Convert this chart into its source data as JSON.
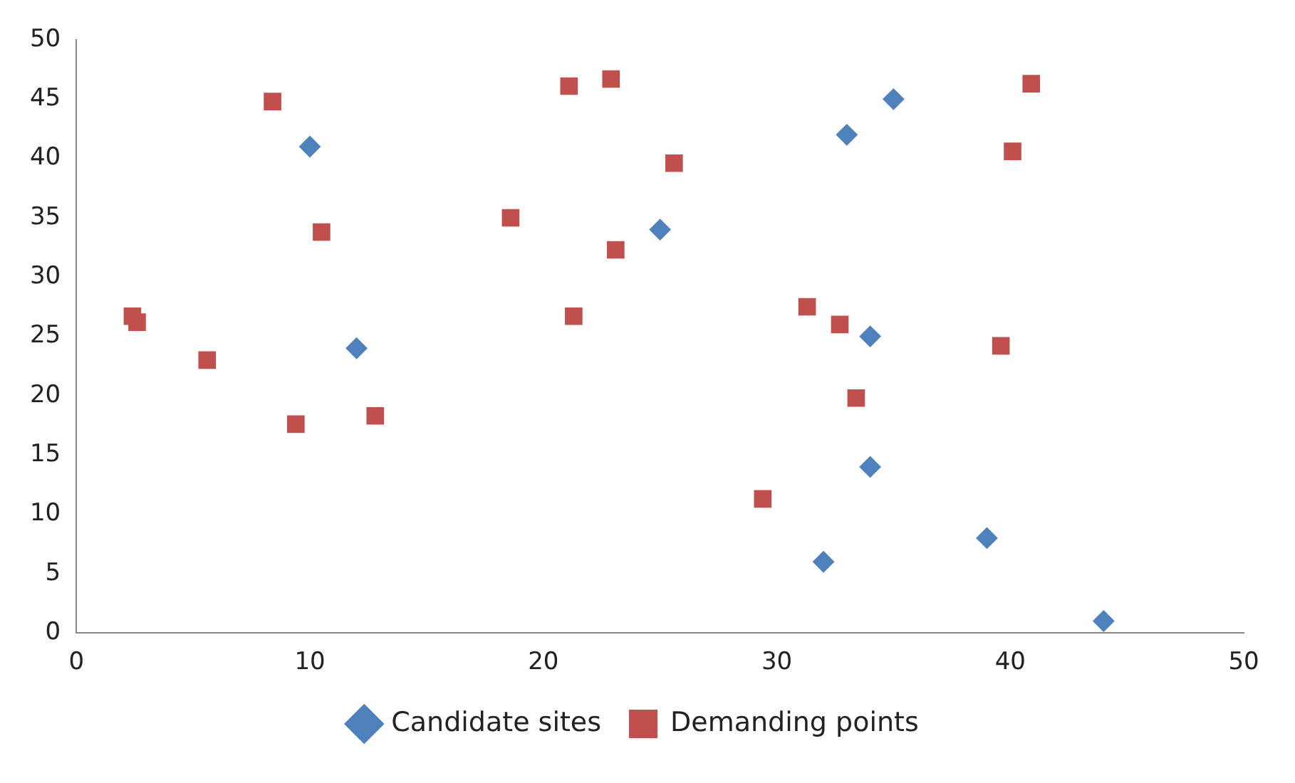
{
  "chart_data": {
    "type": "scatter",
    "xlim": [
      0,
      50
    ],
    "xticks": [
      0,
      10,
      20,
      30,
      40,
      50
    ],
    "ylim": [
      0,
      50
    ],
    "yticks": [
      0,
      5,
      10,
      15,
      20,
      25,
      30,
      35,
      40,
      45,
      50
    ],
    "grid": false,
    "legend": "bottom",
    "series": [
      {
        "name": "Candidate sites",
        "color": "#4f81bd",
        "marker": "diamond",
        "x": [
          10,
          12,
          25,
          33,
          35,
          34,
          34,
          32,
          39,
          44
        ],
        "values": [
          41,
          24,
          34,
          42,
          45,
          25,
          14,
          6,
          8,
          1
        ]
      },
      {
        "name": "Demanding points",
        "color": "#c0504d",
        "marker": "square",
        "x": [
          2.4,
          2.6,
          5.6,
          8.4,
          9.4,
          10.5,
          12.8,
          18.6,
          21.1,
          21.3,
          22.9,
          23.1,
          25.6,
          29.4,
          31.3,
          32.7,
          33.4,
          39.6,
          40.1,
          40.9
        ],
        "values": [
          26.7,
          26.2,
          23,
          44.8,
          17.6,
          33.8,
          18.3,
          35,
          46.1,
          26.7,
          46.7,
          32.3,
          39.6,
          11.3,
          27.5,
          26,
          19.8,
          24.2,
          40.6,
          46.3
        ]
      }
    ]
  }
}
